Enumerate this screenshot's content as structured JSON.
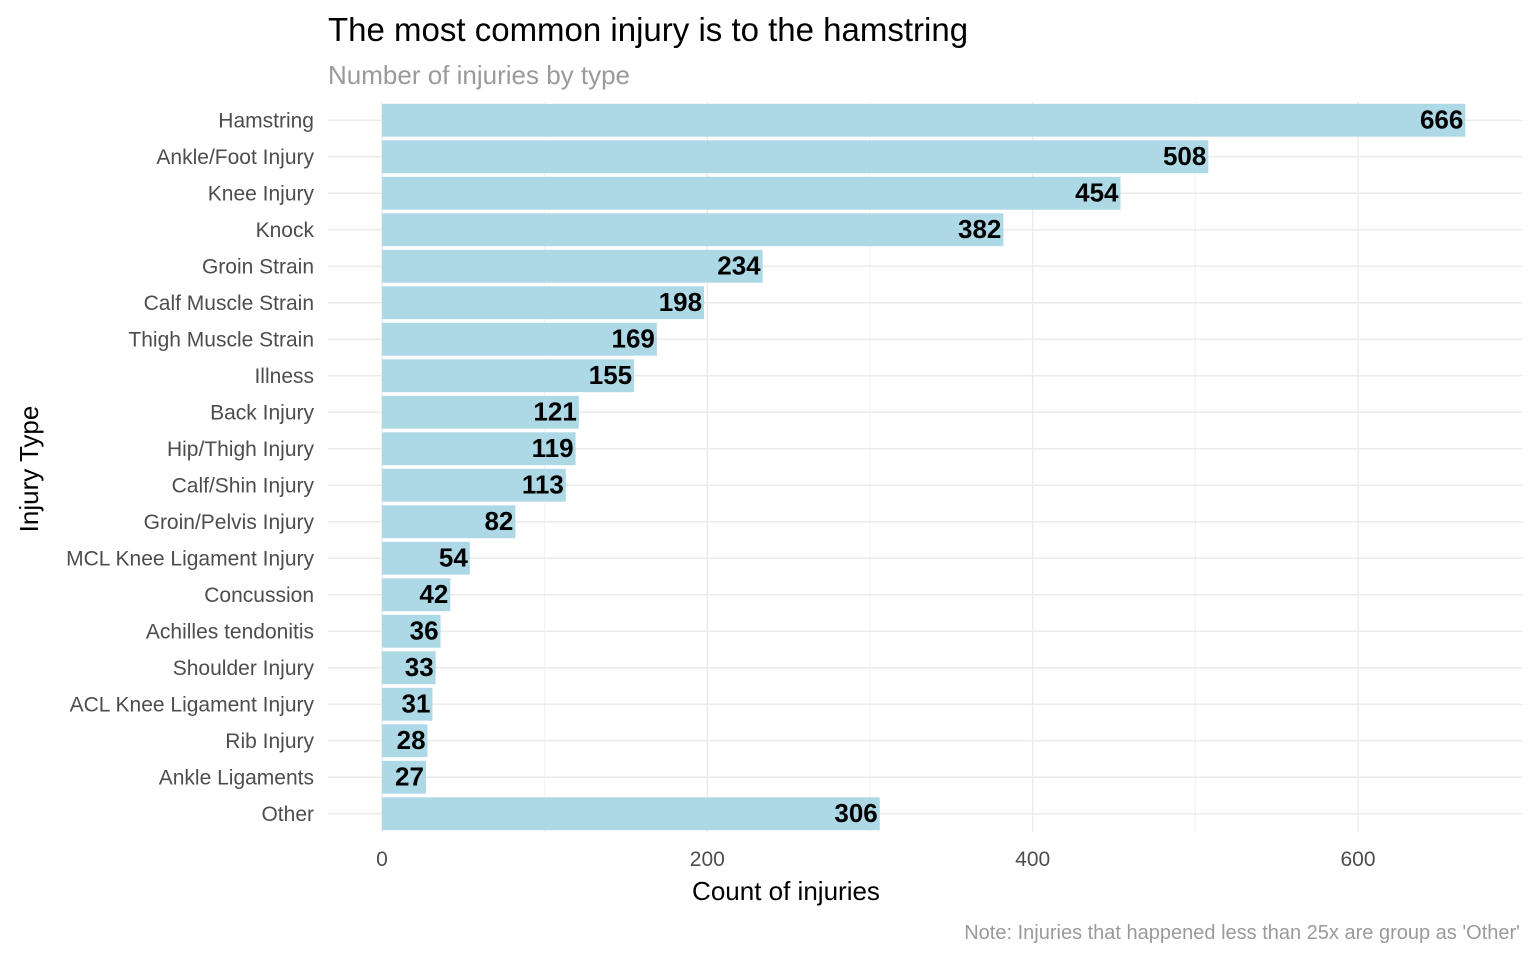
{
  "chart_data": {
    "type": "bar",
    "orientation": "horizontal",
    "title": "The most common injury is to the hamstring",
    "subtitle": "Number of injuries by type",
    "xlabel": "Count of injuries",
    "ylabel": "Injury Type",
    "caption": "Note: Injuries that happened less than 25x are group as 'Other'",
    "categories": [
      "Hamstring",
      "Ankle/Foot Injury",
      "Knee Injury",
      "Knock",
      "Groin Strain",
      "Calf Muscle Strain",
      "Thigh Muscle Strain",
      "Illness",
      "Back Injury",
      "Hip/Thigh Injury",
      "Calf/Shin Injury",
      "Groin/Pelvis Injury",
      "MCL Knee Ligament Injury",
      "Concussion",
      "Achilles tendonitis",
      "Shoulder Injury",
      "ACL Knee Ligament Injury",
      "Rib Injury",
      "Ankle Ligaments",
      "Other"
    ],
    "values": [
      666,
      508,
      454,
      382,
      234,
      198,
      169,
      155,
      121,
      119,
      113,
      82,
      54,
      42,
      36,
      33,
      31,
      28,
      27,
      306
    ],
    "xlim": [
      0,
      700
    ],
    "xticks": [
      0,
      200,
      400,
      600
    ],
    "bar_color": "#add8e6",
    "grid": true,
    "legend": "none"
  }
}
